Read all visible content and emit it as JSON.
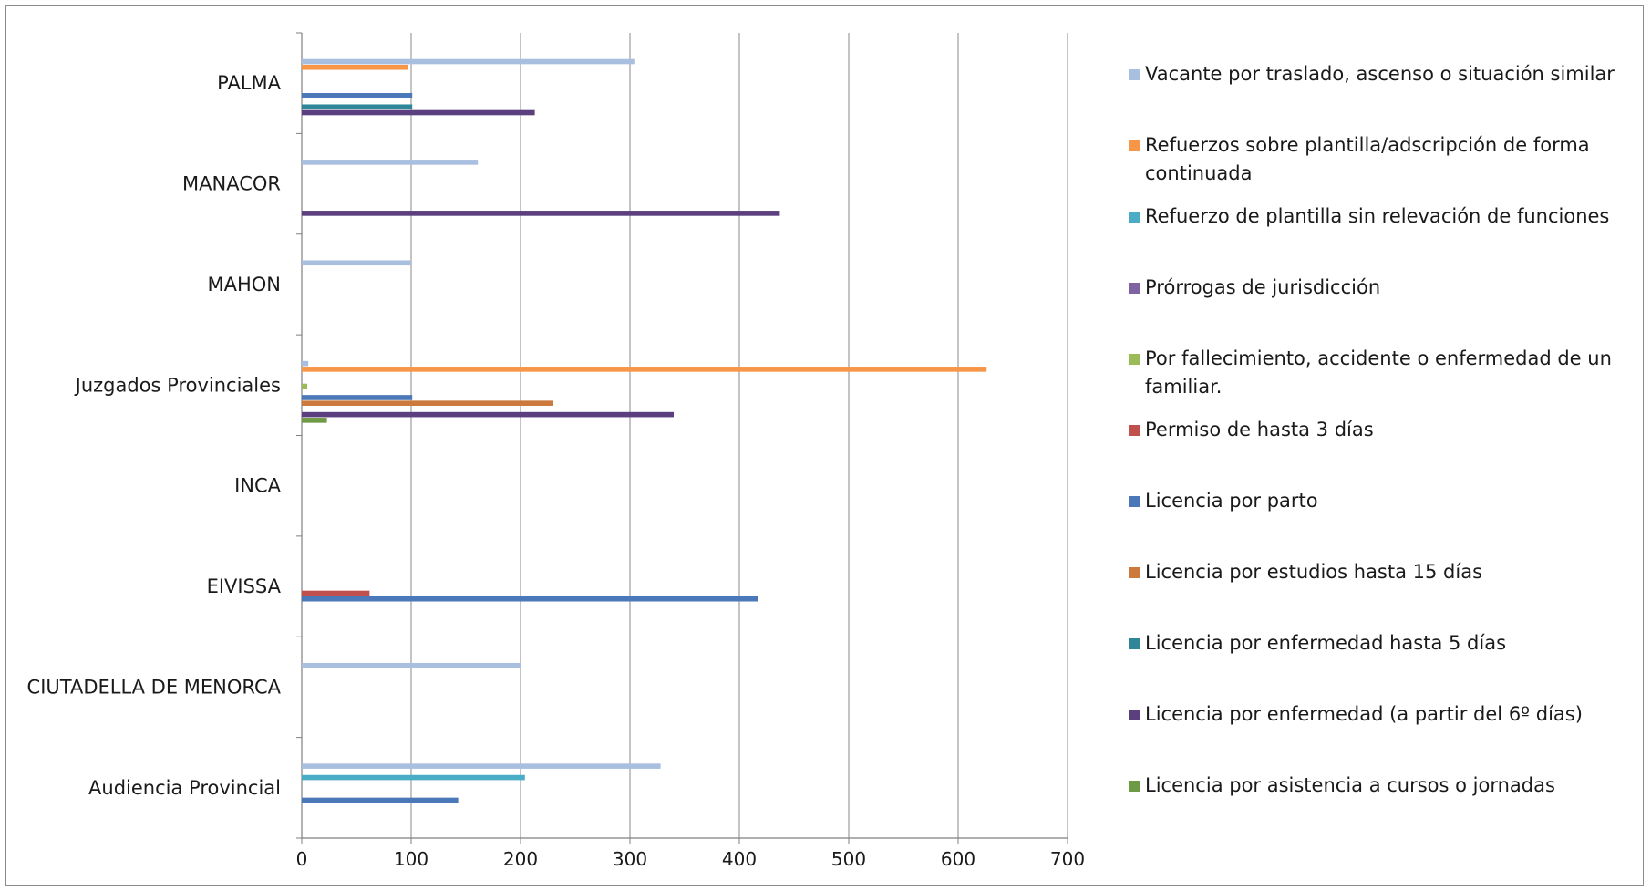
{
  "chart_data": {
    "type": "bar",
    "orientation": "horizontal",
    "title": "",
    "xlabel": "",
    "ylabel": "",
    "xlim": [
      0,
      700
    ],
    "xticks": [
      0,
      100,
      200,
      300,
      400,
      500,
      600,
      700
    ],
    "grid": "vertical",
    "legend_position": "right",
    "categories": [
      "Audiencia Provincial",
      "CIUTADELLA DE MENORCA",
      "EIVISSA",
      "INCA",
      "Juzgados Provinciales",
      "MAHON",
      "MANACOR",
      "PALMA"
    ],
    "series": [
      {
        "name": "Licencia por asistencia a cursos o jornadas",
        "color": "#6f9a45",
        "values": [
          0,
          0,
          0,
          0,
          23,
          0,
          0,
          0
        ]
      },
      {
        "name": "Licencia por enfermedad (a partir del 6º días)",
        "color": "#5b3f7f",
        "values": [
          0,
          0,
          0,
          0,
          340,
          0,
          437,
          213
        ]
      },
      {
        "name": "Licencia por enfermedad hasta 5 días",
        "color": "#2f8699",
        "values": [
          0,
          0,
          0,
          0,
          0,
          0,
          0,
          101
        ]
      },
      {
        "name": "Licencia por estudios hasta 15 días",
        "color": "#cc7a3c",
        "values": [
          0,
          0,
          0,
          0,
          230,
          0,
          0,
          0
        ]
      },
      {
        "name": "Licencia por parto",
        "color": "#4a78b8",
        "values": [
          143,
          0,
          417,
          0,
          101,
          0,
          0,
          101
        ]
      },
      {
        "name": "Permiso de hasta 3 días",
        "color": "#c0504d",
        "values": [
          0,
          0,
          62,
          0,
          0,
          0,
          0,
          0
        ]
      },
      {
        "name": "Por fallecimiento, accidente o enfermedad de un familiar.",
        "color": "#9bbb59",
        "values": [
          0,
          0,
          0,
          0,
          5,
          0,
          0,
          0
        ]
      },
      {
        "name": "Prórrogas de jurisdicción",
        "color": "#8064a2",
        "values": [
          0,
          0,
          0,
          0,
          0,
          0,
          0,
          0
        ]
      },
      {
        "name": "Refuerzo de plantilla sin relevación de funciones",
        "color": "#4bacc6",
        "values": [
          204,
          0,
          0,
          0,
          0,
          0,
          0,
          0
        ]
      },
      {
        "name": "Refuerzos sobre plantilla/adscripción de forma continuada",
        "color": "#f79646",
        "values": [
          0,
          0,
          0,
          0,
          626,
          0,
          0,
          97
        ]
      },
      {
        "name": "Vacante por traslado, ascenso o situación similar",
        "color": "#a9bfe0",
        "values": [
          328,
          200,
          0,
          0,
          6,
          100,
          161,
          304
        ]
      }
    ]
  }
}
